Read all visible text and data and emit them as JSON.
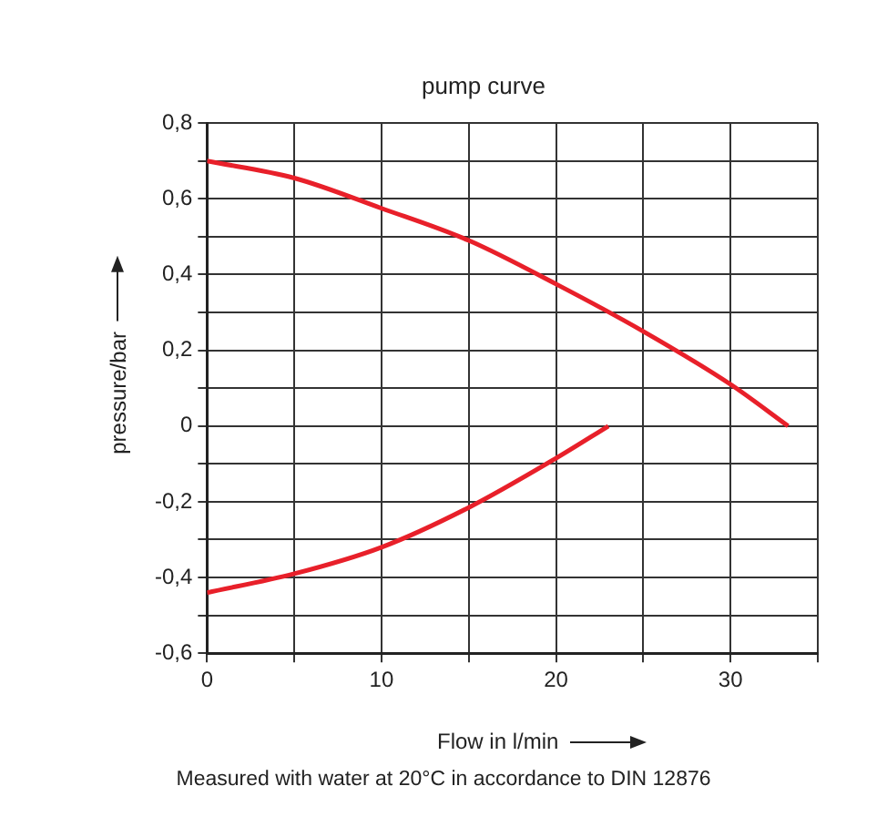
{
  "chart_data": {
    "type": "line",
    "title": "pump curve",
    "xlabel": "Flow in l/min",
    "ylabel": "pressure/bar",
    "annotations": [
      "Measured with water at 20°C in accordance to DIN 12876"
    ],
    "series": [
      {
        "color": "#e8202a",
        "x": [
          0,
          5,
          10,
          15,
          20,
          25,
          30,
          33.3
        ],
        "values": [
          0.7,
          0.655,
          0.575,
          0.49,
          0.375,
          0.25,
          0.11,
          0.0
        ]
      },
      {
        "color": "#e8202a",
        "x": [
          0,
          5,
          10,
          15,
          20,
          23
        ],
        "values": [
          -0.44,
          -0.39,
          -0.32,
          -0.215,
          -0.085,
          0.0
        ]
      }
    ],
    "xlim": [
      0,
      35
    ],
    "xticks": [
      0,
      {
        "value": 5,
        "label": null
      },
      10,
      {
        "value": 15,
        "label": null
      },
      20,
      {
        "value": 25,
        "label": null
      },
      30,
      {
        "value": 35,
        "label": null
      }
    ],
    "ylim": [
      -0.6,
      0.8
    ],
    "yticks": [
      {
        "value": -0.6,
        "label": "-0,6"
      },
      {
        "value": -0.5,
        "label": null
      },
      {
        "value": -0.4,
        "label": "-0,4"
      },
      {
        "value": -0.3,
        "label": null
      },
      {
        "value": -0.2,
        "label": "-0,2"
      },
      {
        "value": -0.1,
        "label": null
      },
      0,
      {
        "value": 0.1,
        "label": null
      },
      {
        "value": 0.2,
        "label": "0,2"
      },
      {
        "value": 0.3,
        "label": null
      },
      {
        "value": 0.4,
        "label": "0,4"
      },
      {
        "value": 0.5,
        "label": null
      },
      {
        "value": 0.6,
        "label": "0,6"
      },
      {
        "value": 0.7,
        "label": null
      },
      {
        "value": 0.8,
        "label": "0,8"
      }
    ],
    "grid": true,
    "legend": false,
    "marker": "none",
    "line_style": "solid"
  }
}
